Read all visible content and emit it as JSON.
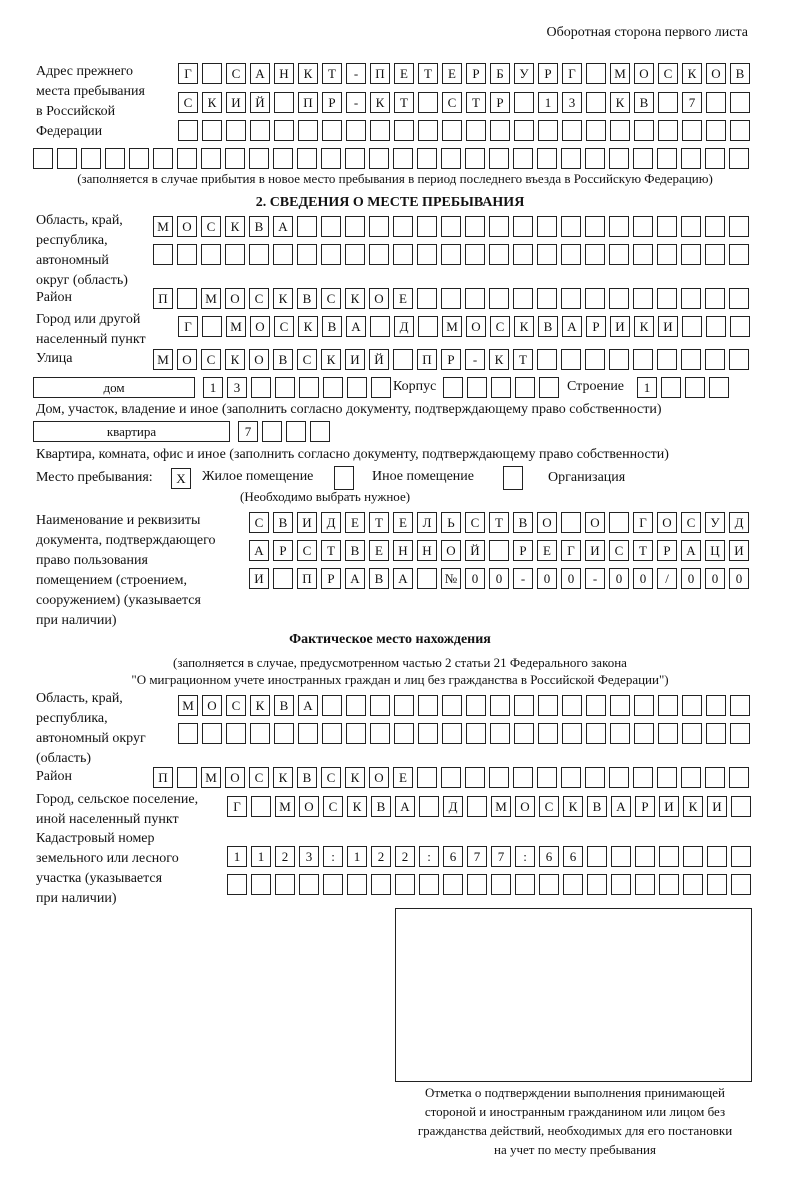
{
  "header": "Оборотная сторона первого листа",
  "prev_address": {
    "label": "Адрес прежнего\nместа пребывания\nв Российской\nФедерации",
    "rows": [
      "Г САНКТ-ПЕТЕРБУРГ МОСКОВ",
      "СКИЙ ПР-КТ СТР 13 КВ 7",
      "",
      ""
    ],
    "note": "(заполняется в случае прибытия в новое место пребывания в период последнего въезда в Российскую Федерацию)"
  },
  "section2": {
    "title": "2. СВЕДЕНИЯ О МЕСТЕ ПРЕБЫВАНИЯ",
    "region_label": "Область, край,\nреспублика,\nавтономный\nокруг (область)",
    "region_rows": [
      "МОСКВА",
      ""
    ],
    "district_label": "Район",
    "district": "П МОСКВСКОЕ",
    "city_label": "Город или другой\nнаселенный пункт",
    "city": "Г МОСКВА Д МОСКВАРИКИ",
    "street_label": "Улица",
    "street": "МОСКОВСКИЙ ПР-КТ",
    "house_type": "дом",
    "house_number": "13",
    "korpus_label": "Корпус",
    "korpus": "",
    "building_label": "Строение",
    "building": "1",
    "house_note": "Дом, участок, владение и иное (заполнить согласно документу, подтверждающему право собственности)",
    "apt_type": "квартира",
    "apt_number": "7",
    "apt_note": "Квартира, комната, офис и иное (заполнить согласно документу, подтверждающему право собственности)",
    "stay_label": "Место пребывания:",
    "stay_options": [
      {
        "label": "Жилое помещение",
        "mark": "X"
      },
      {
        "label": "Иное помещение",
        "mark": ""
      },
      {
        "label": "Организация",
        "mark": ""
      }
    ],
    "stay_note": "(Необходимо выбрать нужное)",
    "doc_label": "Наименование и реквизиты\nдокумента, подтверждающего\nправо пользования\nпомещением (строением,\nсооружением) (указывается\nпри наличии)",
    "doc_rows": [
      "СВИДЕТЕЛЬСТВО О ГОСУД",
      "АРСТВЕННОЙ РЕГИСТРАЦИ",
      "И ПРАВА №00-00-00/000"
    ]
  },
  "actual": {
    "title": "Фактическое место нахождения",
    "note1": "(заполняется в случае, предусмотренном частью 2 статьи 21 Федерального закона",
    "note2": "\"О миграционном учете иностранных граждан и лиц без гражданства в Российской Федерации\")",
    "region_label": "Область, край,\nреспублика,\nавтономный округ\n(область)",
    "region_rows": [
      "МОСКВА",
      ""
    ],
    "district_label": "Район",
    "district": "П МОСКВСКОЕ",
    "city_label": "Город, сельское поселение,\nиной населенный пункт",
    "city": "Г МОСКВА Д МОСКВАРИКИ",
    "cadastral_label": "Кадастровый номер\nземельного или лесного\nучастка (указывается\nпри наличии)",
    "cadastral_rows": [
      "1123:122:677:66",
      ""
    ]
  },
  "stamp_caption": "Отметка о подтверждении выполнения принимающей\nстороной и иностранным гражданином или лицом без\nгражданства действий, необходимых для его постановки\nна учет по месту пребывания"
}
